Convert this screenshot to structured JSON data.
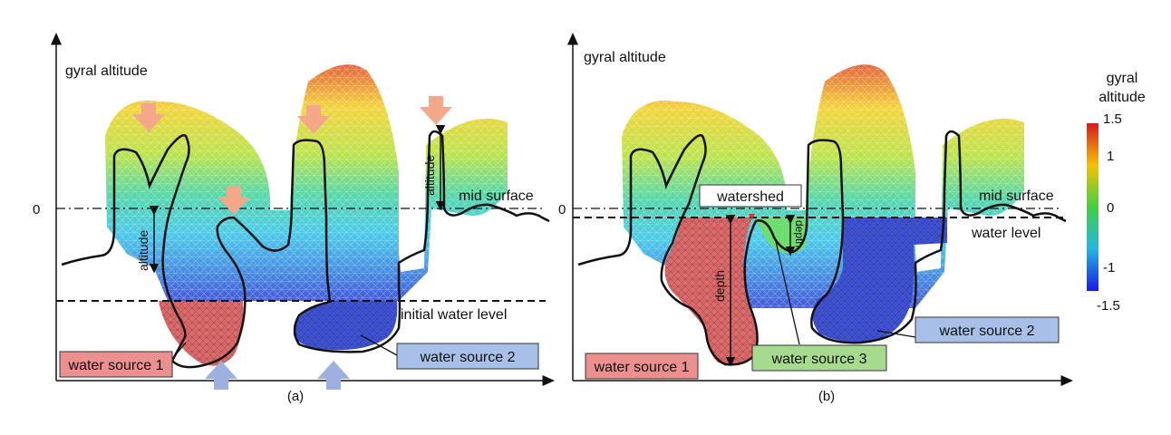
{
  "panel_a": {
    "y_axis_label": "gyral altitude",
    "zero_tick": "0",
    "altitude_label_1": "altitude",
    "altitude_label_2": "altitude",
    "mid_surface": "mid surface",
    "initial_water_level": "initial water level",
    "water_source_1": "water source 1",
    "water_source_2": "water source 2",
    "caption": "(a)"
  },
  "panel_b": {
    "y_axis_label": "gyral altitude",
    "zero_tick": "0",
    "watershed": "watershed",
    "mid_surface": "mid surface",
    "water_level": "water level",
    "depth_label_1": "depth",
    "depth_label_2": "depth",
    "water_source_1": "water source 1",
    "water_source_2": "water source 2",
    "water_source_3": "water source 3",
    "caption": "(b)"
  },
  "colorbar": {
    "title_line1": "gyral",
    "title_line2": "altitude",
    "tick_labels": [
      "1.5",
      "1",
      "0",
      "-1",
      "-1.5"
    ],
    "colors": [
      "#d7191c",
      "#f5c200",
      "#3fd13f",
      "#21b6e6",
      "#1a1ae6"
    ]
  },
  "colors": {
    "source_red": "#e06a6a",
    "source_blue": "#3e52d8",
    "source_green": "#6fdc6f",
    "label_red": "#ec8f8f",
    "label_blue": "#a8c0e8",
    "label_green": "#a6da8e",
    "arrow_top": "#f3a88a",
    "arrow_bottom": "#9db0e0"
  }
}
